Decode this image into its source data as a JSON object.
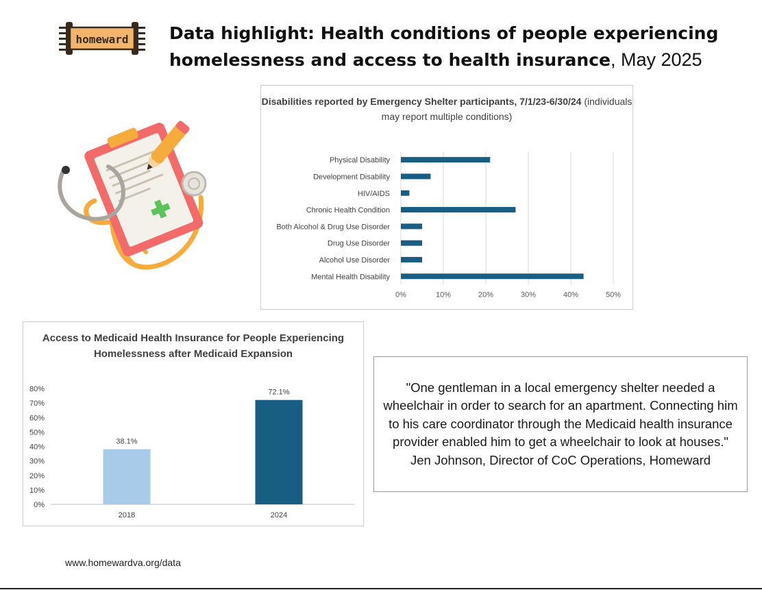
{
  "header": {
    "logo_text": "homeward",
    "title": "Data highlight: Health conditions of people experiencing homelessness and access to health insurance",
    "title_date": ", May 2025"
  },
  "colors": {
    "bar_dark": "#175e82",
    "bar_light": "#a9cbea",
    "logo_bg": "#f2b56b"
  },
  "chart_data": [
    {
      "type": "bar",
      "orientation": "horizontal",
      "title": "Disabilities reported by Emergency Shelter participants, 7/1/23-6/30/24",
      "subtitle": "(individuals may report multiple conditions)",
      "categories": [
        "Physical Disability",
        "Development Disability",
        "HIV/AIDS",
        "Chronic Health Condition",
        "Both Alcohol & Drug Use Disorder",
        "Drug Use Disorder",
        "Alcohol Use Disorder",
        "Mental Health Disability"
      ],
      "values": [
        21,
        7,
        2,
        27,
        5,
        5,
        5,
        43
      ],
      "xlim": [
        0,
        50
      ],
      "xticks": [
        "0%",
        "10%",
        "20%",
        "30%",
        "40%",
        "50%"
      ],
      "grid": "vertical",
      "legend": "none"
    },
    {
      "type": "bar",
      "title": "Access to Medicaid Health Insurance for People Experiencing Homelessness after Medicaid Expansion",
      "categories": [
        "2018",
        "2024"
      ],
      "values": [
        38.1,
        72.1
      ],
      "data_labels": [
        "38.1%",
        "72.1%"
      ],
      "ylim": [
        0,
        80
      ],
      "yticks": [
        "0%",
        "10%",
        "20%",
        "30%",
        "40%",
        "50%",
        "60%",
        "70%",
        "80%"
      ],
      "grid": "none",
      "legend": "none"
    }
  ],
  "quote": {
    "text": "\"One gentleman in a local emergency shelter needed a wheelchair in order to search for an apartment. Connecting him to his care coordinator through the Medicaid health insurance provider enabled him to get a wheelchair to look at houses.\"",
    "attribution": "Jen Johnson, Director of CoC Operations, Homeward"
  },
  "footer": {
    "url": "www.homewardva.org/data"
  }
}
